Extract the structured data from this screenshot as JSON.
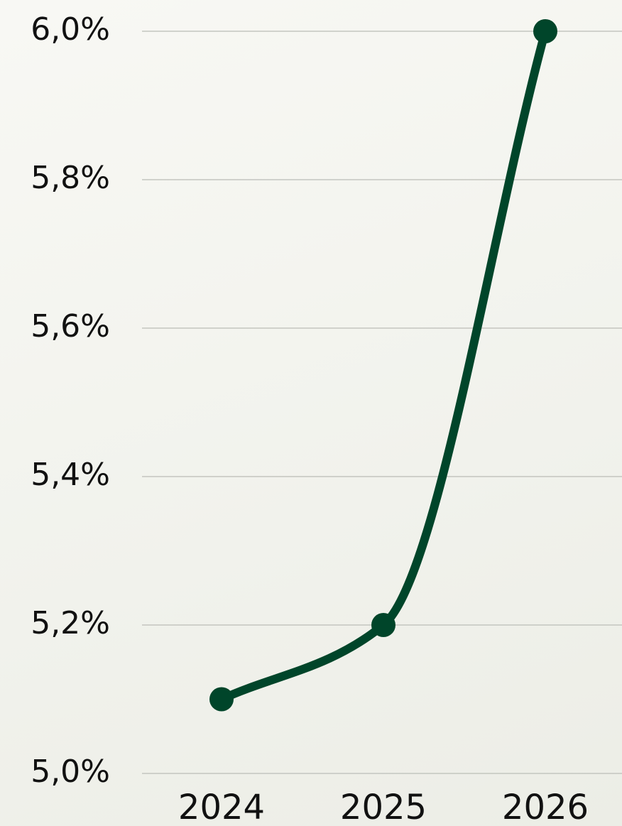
{
  "chart_data": {
    "type": "line",
    "categories": [
      "2024",
      "2025",
      "2026"
    ],
    "series": [
      {
        "color": "#00452a",
        "values": [
          5.1,
          5.2,
          6.0
        ]
      }
    ],
    "ylim": [
      5.0,
      6.0
    ],
    "yticks": [
      {
        "value": 5.0,
        "label": "5,0%"
      },
      {
        "value": 5.2,
        "label": "5,2%"
      },
      {
        "value": 5.4,
        "label": "5,4%"
      },
      {
        "value": 5.6,
        "label": "5,6%"
      },
      {
        "value": 5.8,
        "label": "5,8%"
      },
      {
        "value": 6.0,
        "label": "6,0%"
      }
    ],
    "grid": true,
    "smooth": true
  }
}
